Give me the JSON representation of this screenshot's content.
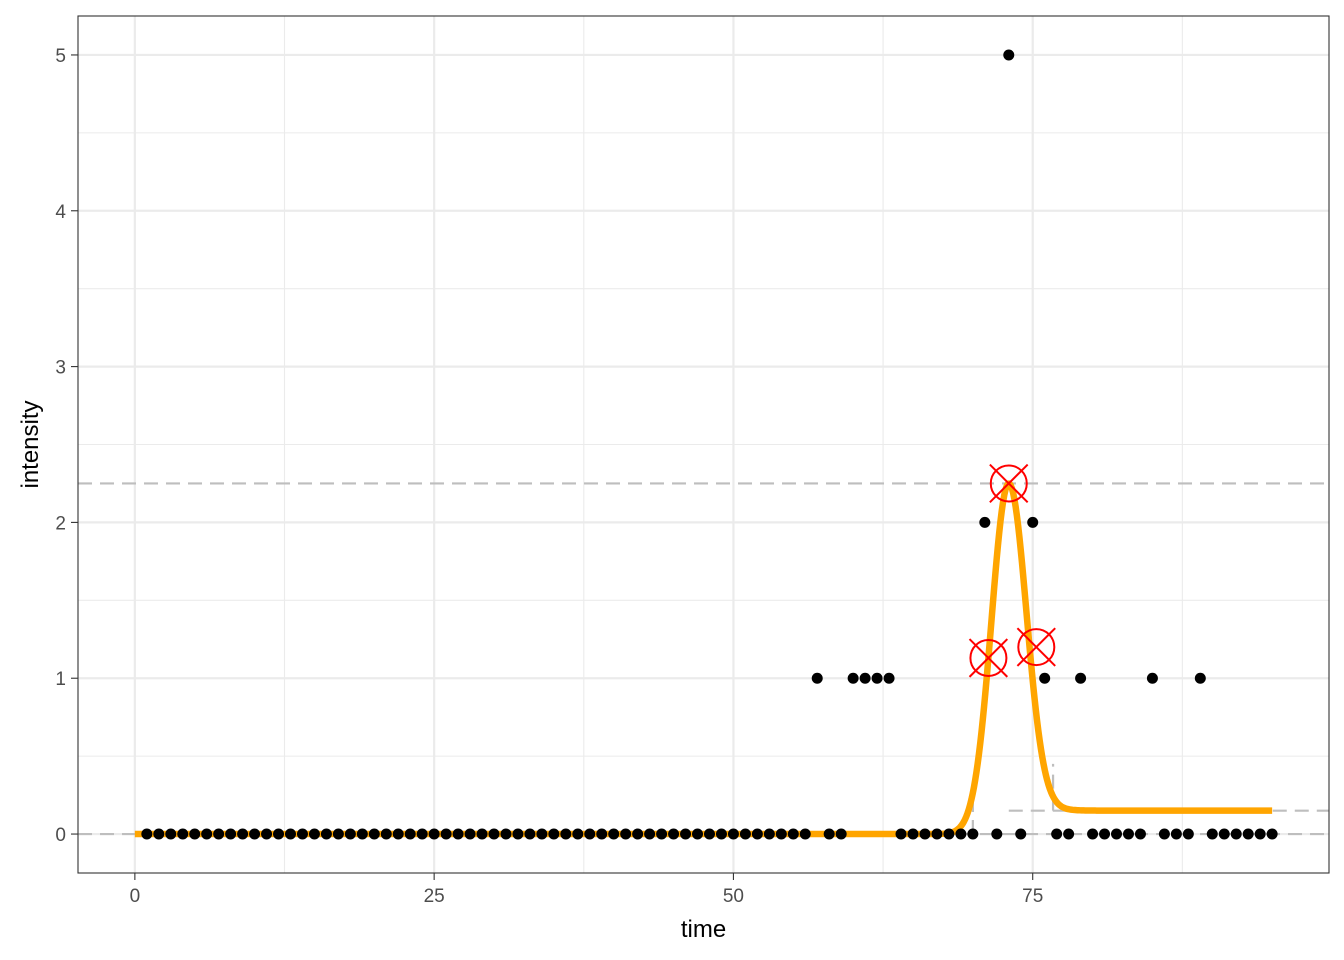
{
  "chart_data": {
    "type": "scatter",
    "title": "",
    "xlabel": "time",
    "ylabel": "intensity",
    "xlim": [
      -4.75,
      99.75
    ],
    "ylim": [
      -0.25,
      5.25
    ],
    "x_ticks": [
      0,
      25,
      50,
      75
    ],
    "y_ticks": [
      0,
      1,
      2,
      3,
      4,
      5
    ],
    "grid": true,
    "legend": "none",
    "colors": {
      "points": "#000000",
      "fit": "#FFA500",
      "markers": "#FF0000",
      "reference": "#BEBEBE",
      "grid": "#EBEBEB",
      "border": "#333333"
    },
    "points": {
      "x": [
        1,
        2,
        3,
        4,
        5,
        6,
        7,
        8,
        9,
        10,
        11,
        12,
        13,
        14,
        15,
        16,
        17,
        18,
        19,
        20,
        21,
        22,
        23,
        24,
        25,
        26,
        27,
        28,
        29,
        30,
        31,
        32,
        33,
        34,
        35,
        36,
        37,
        38,
        39,
        40,
        41,
        42,
        43,
        44,
        45,
        46,
        47,
        48,
        49,
        50,
        51,
        52,
        53,
        54,
        55,
        56,
        57,
        58,
        59,
        60,
        61,
        62,
        63,
        64,
        65,
        66,
        67,
        68,
        69,
        70,
        71,
        72,
        73,
        74,
        75,
        76,
        77,
        78,
        79,
        80,
        81,
        82,
        83,
        84,
        85,
        86,
        87,
        88,
        89,
        90,
        91,
        92,
        93,
        94,
        95
      ],
      "y": [
        0,
        0,
        0,
        0,
        0,
        0,
        0,
        0,
        0,
        0,
        0,
        0,
        0,
        0,
        0,
        0,
        0,
        0,
        0,
        0,
        0,
        0,
        0,
        0,
        0,
        0,
        0,
        0,
        0,
        0,
        0,
        0,
        0,
        0,
        0,
        0,
        0,
        0,
        0,
        0,
        0,
        0,
        0,
        0,
        0,
        0,
        0,
        0,
        0,
        0,
        0,
        0,
        0,
        0,
        0,
        0,
        1,
        0,
        0,
        1,
        1,
        1,
        1,
        0,
        0,
        0,
        0,
        0,
        0,
        0,
        2,
        0,
        5,
        0,
        2,
        1,
        0,
        0,
        1,
        0,
        0,
        0,
        0,
        0,
        1,
        0,
        0,
        0,
        1,
        0,
        0,
        0,
        0,
        0,
        0
      ]
    },
    "fit_curve": {
      "name": "",
      "x_range": [
        0,
        95
      ],
      "baseline_left": 0,
      "baseline_right": 0.15,
      "peak_x": 73,
      "peak_y": 2.25,
      "sigma_left": 1.45,
      "sigma_right": 1.45,
      "right_tail_decay": 1.3
    },
    "markers": [
      {
        "x": 71.3,
        "y": 1.13
      },
      {
        "x": 73.0,
        "y": 2.25
      },
      {
        "x": 75.3,
        "y": 1.2
      }
    ],
    "reference_lines": {
      "horizontal": [
        2.25,
        0
      ],
      "right_baseline": {
        "x_from": 73,
        "y": 0.15
      },
      "left_step": {
        "x": 70.0,
        "y_from": 0,
        "y_to": 0.3
      },
      "right_step": {
        "x": 76.7,
        "y_from": 0.15,
        "y_to": 0.45
      }
    }
  }
}
